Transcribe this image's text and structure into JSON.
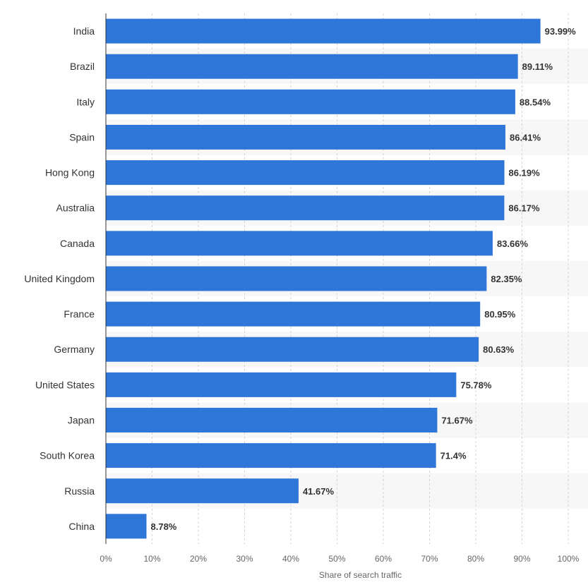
{
  "chart_data": {
    "type": "bar",
    "orientation": "horizontal",
    "categories": [
      "India",
      "Brazil",
      "Italy",
      "Spain",
      "Hong Kong",
      "Australia",
      "Canada",
      "United Kingdom",
      "France",
      "Germany",
      "United States",
      "Japan",
      "South Korea",
      "Russia",
      "China"
    ],
    "values": [
      93.99,
      89.11,
      88.54,
      86.41,
      86.19,
      86.17,
      83.66,
      82.35,
      80.95,
      80.63,
      75.78,
      71.67,
      71.4,
      41.67,
      8.78
    ],
    "value_labels": [
      "93.99%",
      "89.11%",
      "88.54%",
      "86.41%",
      "86.19%",
      "86.17%",
      "83.66%",
      "82.35%",
      "80.95%",
      "80.63%",
      "75.78%",
      "71.67%",
      "71.4%",
      "41.67%",
      "8.78%"
    ],
    "xlabel": "Share of search traffic",
    "ylabel": "",
    "xlim": [
      0,
      100
    ],
    "x_ticks": [
      0,
      10,
      20,
      30,
      40,
      50,
      60,
      70,
      80,
      90,
      100
    ],
    "x_tick_labels": [
      "0%",
      "10%",
      "20%",
      "30%",
      "40%",
      "50%",
      "60%",
      "70%",
      "80%",
      "90%",
      "100%"
    ],
    "grid": "vertical-dashed",
    "legend": "none",
    "colors": {
      "bar": "#2f76d9",
      "value_label": "#333333",
      "category_label": "#333333",
      "tick_label": "#666666",
      "grid": "#d3d3d3",
      "band": "#f7f7f7",
      "axis": "#333333"
    }
  }
}
